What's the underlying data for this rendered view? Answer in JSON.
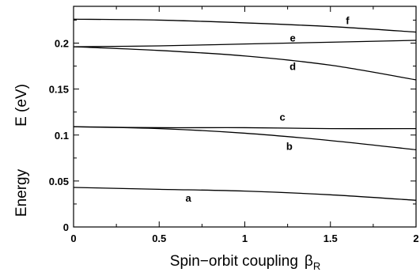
{
  "chart_data": {
    "type": "line",
    "title": "",
    "xlabel": "Spin−orbit coupling",
    "xlabel_symbol": "β",
    "xlabel_subscript": "R",
    "ylabel_left": "Energy",
    "ylabel_right": "E (eV)",
    "xlim": [
      0,
      2
    ],
    "ylim": [
      0,
      0.24
    ],
    "xticks": [
      0,
      0.5,
      1,
      1.5,
      2
    ],
    "xtick_labels": [
      "0",
      "0.5",
      "1",
      "1.5",
      "2"
    ],
    "yticks": [
      0,
      0.05,
      0.1,
      0.15,
      0.2
    ],
    "ytick_labels": [
      "0",
      "0.05",
      "0.1",
      "0.15",
      "0.2"
    ],
    "grid": false,
    "legend": "none",
    "line_color": "#000000",
    "series": [
      {
        "name": "a",
        "x": [
          0,
          0.5,
          1,
          1.5,
          2
        ],
        "y": [
          0.043,
          0.041,
          0.039,
          0.035,
          0.029
        ],
        "label_at": [
          0.67,
          0.032
        ]
      },
      {
        "name": "b",
        "x": [
          0,
          0.5,
          1,
          1.5,
          2
        ],
        "y": [
          0.109,
          0.107,
          0.102,
          0.094,
          0.084
        ],
        "label_at": [
          1.26,
          0.088
        ]
      },
      {
        "name": "c",
        "x": [
          0,
          0.5,
          1,
          1.5,
          2
        ],
        "y": [
          0.109,
          0.108,
          0.108,
          0.107,
          0.107
        ],
        "label_at": [
          1.22,
          0.12
        ]
      },
      {
        "name": "d",
        "x": [
          0,
          0.5,
          1,
          1.5,
          2
        ],
        "y": [
          0.196,
          0.192,
          0.186,
          0.176,
          0.16
        ],
        "label_at": [
          1.28,
          0.175
        ]
      },
      {
        "name": "e",
        "x": [
          0,
          0.5,
          1,
          1.5,
          2
        ],
        "y": [
          0.196,
          0.197,
          0.199,
          0.201,
          0.203
        ],
        "label_at": [
          1.28,
          0.206
        ]
      },
      {
        "name": "f",
        "x": [
          0,
          0.5,
          1,
          1.5,
          2
        ],
        "y": [
          0.226,
          0.225,
          0.222,
          0.218,
          0.212
        ],
        "label_at": [
          1.6,
          0.225
        ]
      }
    ]
  }
}
